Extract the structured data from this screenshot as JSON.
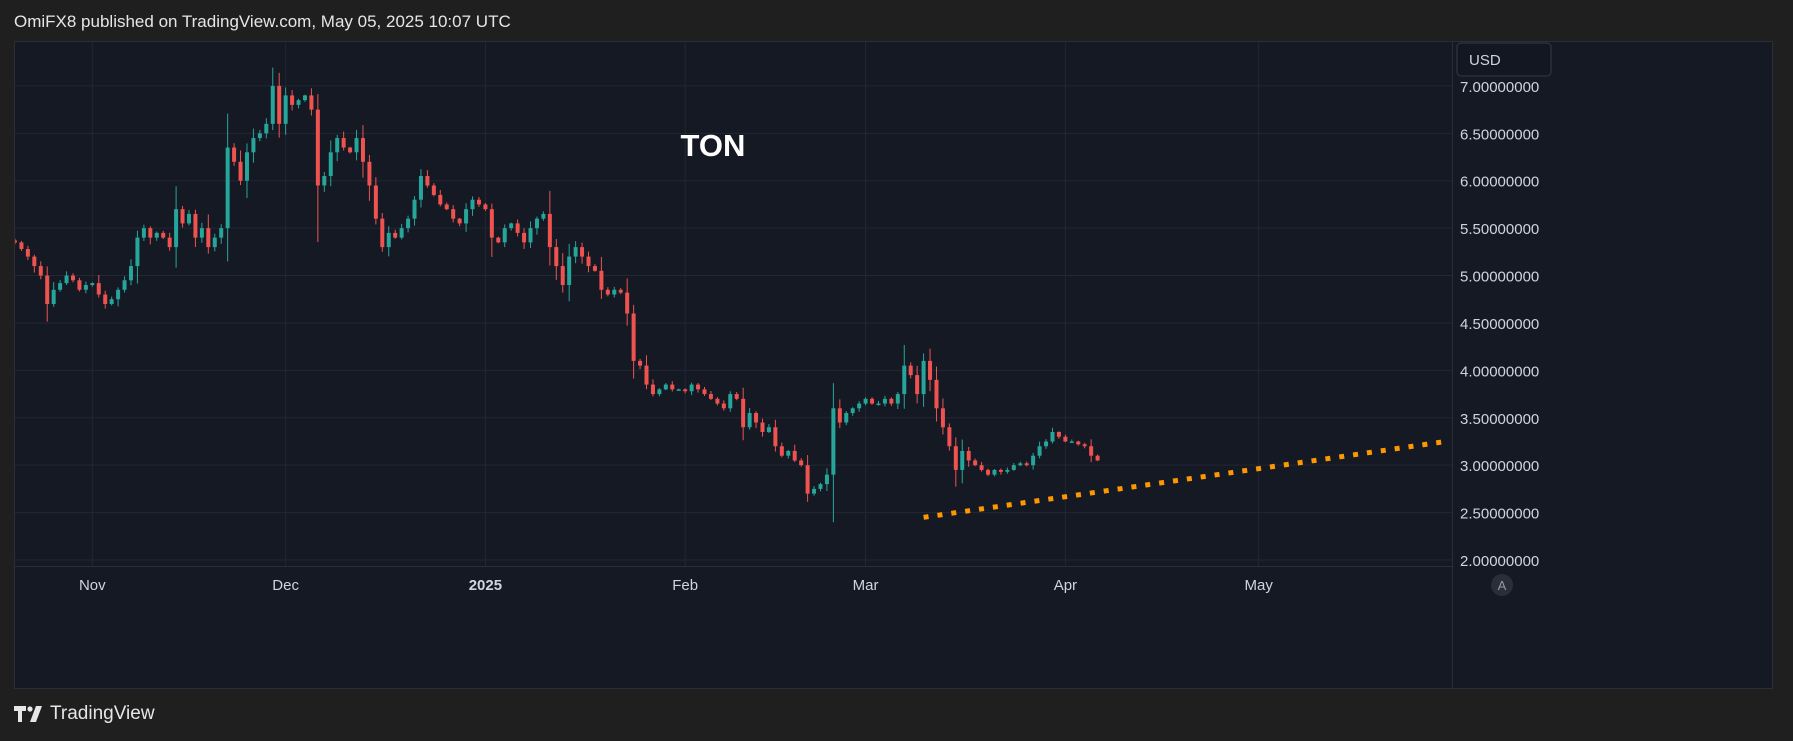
{
  "header": {
    "publish_info": "OmiFX8 published on TradingView.com, May 05, 2025 10:07 UTC"
  },
  "footer": {
    "brand": "TradingView"
  },
  "currency_button": "USD",
  "auto_scale_button": "A",
  "colors": {
    "up": "#26a69a",
    "down": "#ef5350",
    "trendline": "#ff9800",
    "background": "#151924",
    "page": "#1f1f1f",
    "text": "#d1d4dc"
  },
  "icons": {
    "logo": "tradingview-logo-icon"
  },
  "chart_data": {
    "type": "candlestick",
    "title": "TON",
    "y_axis": {
      "min": 2.0,
      "max": 7.4,
      "tick_labels": [
        "7.00000000",
        "6.50000000",
        "6.00000000",
        "5.50000000",
        "5.00000000",
        "4.50000000",
        "4.00000000",
        "3.50000000",
        "3.00000000",
        "2.50000000",
        "2.00000000"
      ],
      "tick_values": [
        7.0,
        6.5,
        6.0,
        5.5,
        5.0,
        4.5,
        4.0,
        3.5,
        3.0,
        2.5,
        2.0
      ]
    },
    "x_axis": {
      "labels": [
        "Nov",
        "Dec",
        "2025",
        "Feb",
        "Mar",
        "Apr",
        "May"
      ],
      "dates": [
        "2024-11-01",
        "2024-12-01",
        "2025-01-01",
        "2025-02-01",
        "2025-03-01",
        "2025-04-01",
        "2025-05-01"
      ],
      "start": "2024-10-20",
      "end": "2025-05-31"
    },
    "grid": true,
    "series": [
      {
        "type": "ohlc_daily",
        "start_date": "2024-10-20",
        "closes": [
          5.35,
          5.28,
          5.2,
          5.1,
          5.0,
          4.7,
          4.85,
          4.92,
          5.0,
          4.95,
          4.85,
          4.9,
          4.92,
          4.8,
          4.7,
          4.75,
          4.85,
          4.95,
          5.1,
          5.4,
          5.5,
          5.4,
          5.45,
          5.4,
          5.3,
          5.7,
          5.55,
          5.65,
          5.4,
          5.5,
          5.3,
          5.4,
          5.5,
          6.35,
          6.2,
          6.0,
          6.3,
          6.45,
          6.5,
          6.6,
          7.0,
          6.6,
          6.9,
          6.8,
          6.85,
          6.9,
          6.75,
          5.95,
          6.05,
          6.3,
          6.45,
          6.35,
          6.3,
          6.45,
          6.2,
          5.95,
          5.6,
          5.3,
          5.45,
          5.4,
          5.5,
          5.6,
          5.8,
          6.05,
          5.95,
          5.85,
          5.75,
          5.7,
          5.6,
          5.55,
          5.7,
          5.8,
          5.75,
          5.7,
          5.4,
          5.35,
          5.5,
          5.55,
          5.45,
          5.35,
          5.5,
          5.6,
          5.65,
          5.3,
          5.1,
          4.9,
          5.2,
          5.3,
          5.2,
          5.1,
          5.05,
          4.85,
          4.8,
          4.85,
          4.82,
          4.6,
          4.1,
          4.05,
          3.85,
          3.75,
          3.8,
          3.85,
          3.8,
          3.8,
          3.78,
          3.85,
          3.8,
          3.75,
          3.7,
          3.65,
          3.6,
          3.75,
          3.7,
          3.4,
          3.55,
          3.45,
          3.35,
          3.4,
          3.2,
          3.1,
          3.15,
          3.05,
          3.0,
          2.7,
          2.75,
          2.8,
          2.9,
          3.6,
          3.45,
          3.55,
          3.6,
          3.65,
          3.7,
          3.65,
          3.65,
          3.7,
          3.65,
          3.75,
          4.05,
          3.95,
          3.75,
          4.1,
          3.9,
          3.6,
          3.4,
          3.2,
          2.95,
          3.15,
          3.05,
          3.0,
          2.95,
          2.9,
          2.95,
          2.93,
          2.95,
          3.0,
          3.02,
          3.0,
          3.1,
          3.2,
          3.25,
          3.35,
          3.3,
          3.25,
          3.25,
          3.22,
          3.2,
          3.1,
          3.05
        ],
        "note": "approximate daily closes read from chart"
      },
      {
        "type": "trendline",
        "style": "dotted",
        "points": [
          {
            "date": "2025-03-10",
            "value": 2.45
          },
          {
            "date": "2025-05-30",
            "value": 3.25
          }
        ]
      }
    ]
  }
}
